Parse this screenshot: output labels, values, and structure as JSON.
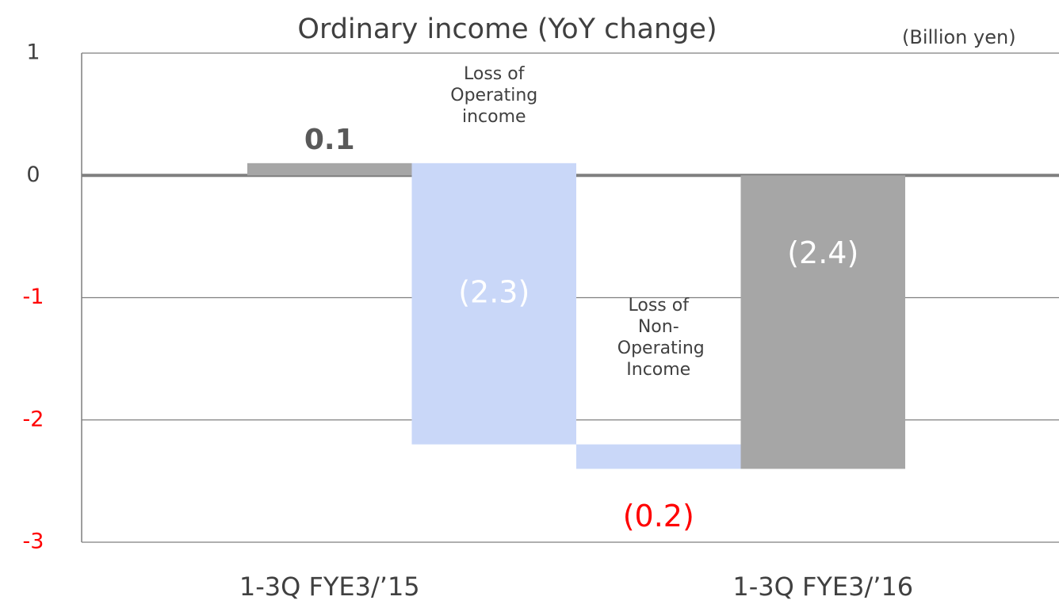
{
  "chart_data": {
    "type": "waterfall",
    "title": "Ordinary income (YoY change)",
    "unit_label": "(Billion yen)",
    "categories": [
      "1-3Q FYE3/’15",
      "Loss of Operating income",
      "Loss of Non-Operating Income",
      "1-3Q FYE3/’16"
    ],
    "values": [
      0.1,
      -2.3,
      -0.2,
      -2.4
    ],
    "value_labels": [
      "0.1",
      "(2.3)",
      "(0.2)",
      "(2.4)"
    ],
    "totals": [
      true,
      false,
      false,
      true
    ],
    "colors": [
      "#a6a6a6",
      "#c9d7f8",
      "#c9d7f8",
      "#a6a6a6"
    ],
    "ylim": [
      -3,
      1
    ],
    "yticks": [
      -3,
      -2,
      -1,
      0,
      1
    ],
    "grid": true
  }
}
